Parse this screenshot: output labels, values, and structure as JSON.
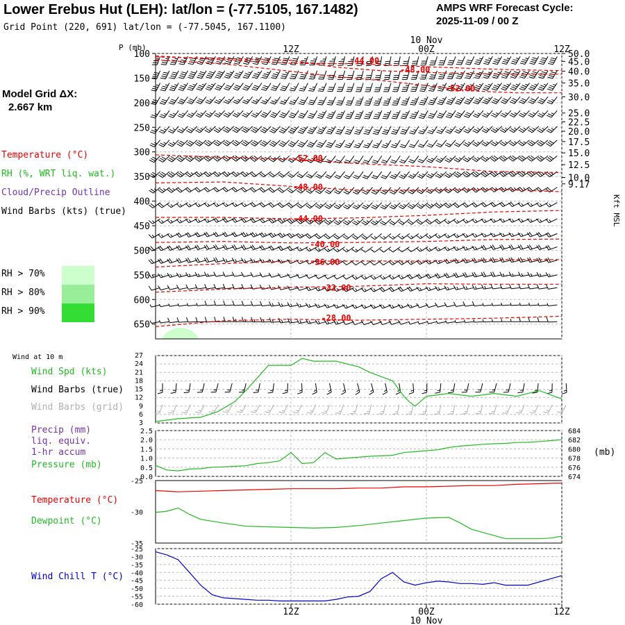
{
  "header": {
    "title": "Lower Erebus Hut (LEH):  lat/lon = (-77.5105, 167.1482)",
    "subtitle": "Grid Point (220, 691) lat/lon = (-77.5045, 167.1100)",
    "cycle_label": "AMPS WRF Forecast Cycle:",
    "cycle_value": "2025-11-09 / 00  Z",
    "grid_dx_label": "Model Grid ΔX:",
    "grid_dx_value": "2.667 km"
  },
  "legend": {
    "temperature": "Temperature (°C)",
    "rh": "RH (%, WRT liq. wat.)",
    "cloud": "Cloud/Precip Outline",
    "wind": "Wind Barbs (kts) (true)",
    "rh70": "RH > 70%",
    "rh80": "RH > 80%",
    "rh90": "RH > 90%"
  },
  "colors": {
    "temperature": "#ee0000",
    "rh": "#22bb22",
    "cloud": "#7733aa",
    "windchill": "#0000cc",
    "grid": "#bbbbbb",
    "rh70": "#ccffcc",
    "rh80": "#99ee99",
    "rh90": "#33dd33",
    "barb_grid": "#b0b0b0"
  },
  "time_axis": {
    "top_date": "10 Nov",
    "bottom_date": "10 Nov",
    "ticks": [
      "12Z",
      "00Z",
      "12Z"
    ],
    "fhour": [
      12,
      24,
      36
    ]
  },
  "chart_data": [
    {
      "type": "line",
      "id": "profile",
      "ylabel": "P (mb)",
      "right_label": "Kft MSL",
      "x_range": [
        0,
        36
      ],
      "y_range": [
        100,
        680
      ],
      "y_ticks": [
        100,
        150,
        200,
        250,
        300,
        350,
        400,
        450,
        500,
        550,
        600,
        650
      ],
      "right_ticks": [
        {
          "p": 100,
          "label": "50.0"
        },
        {
          "p": 116,
          "label": "45.0"
        },
        {
          "p": 136,
          "label": "40.0"
        },
        {
          "p": 160,
          "label": "35.0"
        },
        {
          "p": 188,
          "label": "30.0"
        },
        {
          "p": 221,
          "label": "25.0"
        },
        {
          "p": 239,
          "label": "22.5"
        },
        {
          "p": 258,
          "label": "20.0"
        },
        {
          "p": 279,
          "label": "17.5"
        },
        {
          "p": 302,
          "label": "15.0"
        },
        {
          "p": 326,
          "label": "12.5"
        },
        {
          "p": 352,
          "label": "10.0"
        },
        {
          "p": 365,
          "label": "9.17"
        }
      ],
      "isotherms": [
        {
          "label": "-44.00",
          "label_x": 18.5,
          "label_p": 115,
          "points": [
            [
              0,
              105
            ],
            [
              6,
              113
            ],
            [
              12,
              120
            ],
            [
              18,
              121
            ],
            [
              24,
              127
            ],
            [
              30,
              132
            ],
            [
              36,
              135
            ]
          ]
        },
        {
          "label": "-48.00",
          "label_x": 23,
          "label_p": 133,
          "points": [
            [
              0,
              107
            ],
            [
              6,
              110
            ],
            [
              12,
              114
            ],
            [
              16,
              128
            ],
            [
              20,
              135
            ],
            [
              26,
              140
            ],
            [
              32,
              142
            ],
            [
              36,
              142
            ]
          ]
        },
        {
          "label": "-52.00",
          "label_x": 27,
          "label_p": 171,
          "points": [
            [
              0,
              113
            ],
            [
              6,
              121
            ],
            [
              10,
              131
            ],
            [
              16,
              147
            ],
            [
              20,
              155
            ],
            [
              24,
              165
            ],
            [
              28,
              176
            ],
            [
              32,
              180
            ],
            [
              36,
              180
            ]
          ]
        },
        {
          "label": "-52.00",
          "label_x": 13.5,
          "label_p": 313,
          "points": [
            [
              0,
              306
            ],
            [
              6,
              311
            ],
            [
              12,
              315
            ],
            [
              18,
              324
            ],
            [
              24,
              330
            ],
            [
              30,
              340
            ],
            [
              36,
              342
            ]
          ]
        },
        {
          "label": "-48.00",
          "label_x": 13.5,
          "label_p": 372,
          "points": [
            [
              0,
              363
            ],
            [
              6,
              361
            ],
            [
              12,
              370
            ],
            [
              18,
              378
            ],
            [
              24,
              378
            ],
            [
              30,
              376
            ],
            [
              36,
              381
            ]
          ]
        },
        {
          "label": "-44.00",
          "label_x": 13.5,
          "label_p": 436,
          "points": [
            [
              0,
              433
            ],
            [
              6,
              433
            ],
            [
              12,
              436
            ],
            [
              18,
              434
            ],
            [
              24,
              429
            ],
            [
              30,
              422
            ],
            [
              36,
              419
            ]
          ]
        },
        {
          "label": "-40.00",
          "label_x": 15,
          "label_p": 488,
          "points": [
            [
              0,
              484
            ],
            [
              6,
              482
            ],
            [
              12,
              485
            ],
            [
              18,
              484
            ],
            [
              24,
              482
            ],
            [
              30,
              478
            ],
            [
              36,
              477
            ]
          ]
        },
        {
          "label": "-36.00",
          "label_x": 15,
          "label_p": 524,
          "points": [
            [
              0,
              534
            ],
            [
              6,
              527
            ],
            [
              12,
              522
            ],
            [
              18,
              522
            ],
            [
              24,
              522
            ],
            [
              30,
              519
            ],
            [
              36,
              519
            ]
          ]
        },
        {
          "label": "-32.00",
          "label_x": 16,
          "label_p": 576,
          "points": [
            [
              0,
              585
            ],
            [
              6,
              579
            ],
            [
              12,
              575
            ],
            [
              18,
              573
            ],
            [
              24,
              568
            ],
            [
              30,
              569
            ],
            [
              36,
              569
            ]
          ]
        },
        {
          "label": "-28.00",
          "label_x": 16,
          "label_p": 638,
          "points": [
            [
              0,
              655
            ],
            [
              6,
              643
            ],
            [
              12,
              640
            ],
            [
              18,
              642
            ],
            [
              24,
              640
            ],
            [
              30,
              638
            ],
            [
              36,
              634
            ]
          ]
        }
      ],
      "barb_levels": [
        106,
        135,
        160,
        188,
        216,
        248,
        276,
        308,
        340,
        372,
        403,
        436,
        466,
        493,
        520,
        550,
        576,
        611,
        645
      ]
    },
    {
      "type": "line",
      "id": "wind10m",
      "title": "Wind at 10 m",
      "labels": [
        "Wind Spd (kts)",
        "Wind Barbs (true)",
        "Wind Barbs (grid)"
      ],
      "ylim": [
        3,
        27
      ],
      "y_ticks": [
        3,
        6,
        9,
        12,
        15,
        18,
        21,
        24,
        27
      ],
      "series": [
        {
          "name": "Wind Spd (kts)",
          "color": "#22bb22",
          "x": [
            0,
            2,
            4,
            5.5,
            7,
            8,
            9,
            10,
            12,
            13,
            14,
            16,
            18,
            19,
            20,
            21,
            22,
            22.5,
            23,
            24,
            26,
            28,
            30,
            32,
            34,
            36
          ],
          "y": [
            3.5,
            4.5,
            5,
            7,
            10.5,
            14.5,
            19,
            23.5,
            23.5,
            26,
            25,
            25,
            23,
            21,
            19.5,
            18,
            12.5,
            10.5,
            9,
            12.5,
            13.5,
            12.5,
            13.5,
            12.5,
            14.5,
            11.5
          ]
        }
      ]
    },
    {
      "type": "line",
      "id": "precip",
      "labels": [
        "Precip (mm)",
        "liq. equiv.",
        "1-hr accum",
        "Pressure (mb)"
      ],
      "right_unit": "(mb)",
      "ylim": [
        0,
        2.5
      ],
      "y_ticks": [
        "0.0",
        "0.5",
        "1.0",
        "1.5",
        "2.0",
        "2.5"
      ],
      "right_ticks": [
        "674",
        "676",
        "678",
        "680",
        "682",
        "684"
      ],
      "series": [
        {
          "name": "Pressure (mb)",
          "color": "#22bb22",
          "x": [
            0,
            1,
            2,
            3,
            4,
            5,
            6,
            7,
            8,
            9,
            10,
            11,
            12,
            13,
            14,
            15,
            16,
            17,
            18,
            19,
            20,
            21,
            22,
            23,
            24,
            25,
            26,
            27,
            28,
            29,
            30,
            31,
            32,
            33,
            34,
            35,
            36
          ],
          "y": [
            0.6,
            0.35,
            0.3,
            0.4,
            0.42,
            0.5,
            0.52,
            0.55,
            0.58,
            0.7,
            0.75,
            0.85,
            1.3,
            0.7,
            0.75,
            1.3,
            0.95,
            1.0,
            1.05,
            1.1,
            1.12,
            1.15,
            1.3,
            1.35,
            1.4,
            1.45,
            1.58,
            1.65,
            1.7,
            1.75,
            1.78,
            1.8,
            1.85,
            1.86,
            1.9,
            1.95,
            2.0
          ]
        }
      ]
    },
    {
      "type": "line",
      "id": "temperature",
      "labels": [
        "Temperature (°C)",
        "Dewpoint (°C)"
      ],
      "ylim": [
        -35,
        -25
      ],
      "y_ticks": [
        "-35",
        "-30",
        "-25"
      ],
      "series": [
        {
          "name": "Temperature (°C)",
          "color": "#ee0000",
          "x": [
            0,
            2,
            4,
            6,
            8,
            10,
            12,
            14,
            16,
            18,
            20,
            22,
            24,
            26,
            28,
            30,
            32,
            34,
            36
          ],
          "y": [
            -26.6,
            -26.8,
            -26.7,
            -26.6,
            -26.5,
            -26.4,
            -26.3,
            -26.3,
            -26.3,
            -26.2,
            -26.2,
            -26.0,
            -26.0,
            -25.9,
            -25.8,
            -25.8,
            -25.6,
            -25.5,
            -25.4
          ]
        },
        {
          "name": "Dewpoint (°C)",
          "color": "#22bb22",
          "x": [
            0,
            1,
            2,
            3,
            4,
            6,
            8,
            10,
            12,
            14,
            16,
            18,
            20,
            22,
            24,
            26,
            27,
            28,
            29,
            30,
            31,
            32,
            33,
            34,
            35,
            36
          ],
          "y": [
            -30.1,
            -29.9,
            -29.4,
            -30.4,
            -31.2,
            -31.8,
            -32.3,
            -32.4,
            -32.5,
            -32.6,
            -32.5,
            -32.2,
            -31.8,
            -31.4,
            -31.0,
            -30.9,
            -31.8,
            -32.8,
            -33.3,
            -33.8,
            -34.3,
            -34.3,
            -34.3,
            -34.3,
            -34.2,
            -33.9
          ]
        }
      ]
    },
    {
      "type": "line",
      "id": "windchill",
      "labels": [
        "Wind Chill T (°C)"
      ],
      "ylim": [
        -60,
        -25
      ],
      "y_ticks": [
        "-25",
        "-30",
        "-35",
        "-40",
        "-45",
        "-50",
        "-55",
        "-60"
      ],
      "series": [
        {
          "name": "Wind Chill T (°C)",
          "color": "#0000cc",
          "x": [
            0,
            1,
            2,
            3,
            4,
            5,
            6,
            7,
            8,
            9,
            10,
            11,
            12,
            13,
            14,
            15,
            16,
            17,
            18,
            19,
            20,
            21,
            22,
            23,
            24,
            25,
            26,
            27,
            28,
            29,
            30,
            31,
            32,
            33,
            34,
            35,
            36
          ],
          "y": [
            -27,
            -29,
            -32,
            -40,
            -48,
            -54,
            -56,
            -56.5,
            -57,
            -57.5,
            -57.5,
            -58,
            -58,
            -58,
            -58,
            -58,
            -57,
            -55.5,
            -55,
            -52,
            -44,
            -40,
            -46,
            -48,
            -46.5,
            -45.5,
            -46,
            -47,
            -47,
            -47.5,
            -46.5,
            -48,
            -48,
            -48,
            -46,
            -44,
            -42
          ]
        }
      ]
    }
  ]
}
